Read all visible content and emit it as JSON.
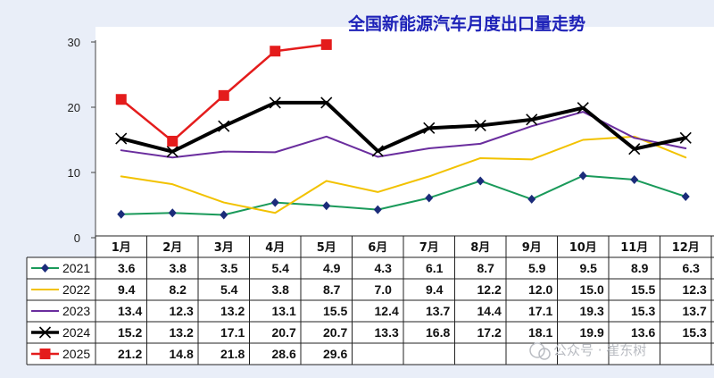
{
  "chart_data": {
    "type": "line",
    "title": "全国新能源汽车月度出口量走势",
    "categories": [
      "1月",
      "2月",
      "3月",
      "4月",
      "5月",
      "6月",
      "7月",
      "8月",
      "9月",
      "10月",
      "11月",
      "12月"
    ],
    "ylim": [
      0,
      30
    ],
    "yticks": [
      0,
      10,
      20,
      30
    ],
    "grid": false,
    "legend_position": "data-table-left",
    "series": [
      {
        "name": "2021",
        "color": "#1a9a5a",
        "marker": "diamond",
        "marker_color": "#1b2c7a",
        "width": 2,
        "values": [
          3.6,
          3.8,
          3.5,
          5.4,
          4.9,
          4.3,
          6.1,
          8.7,
          5.9,
          9.5,
          8.9,
          6.3
        ]
      },
      {
        "name": "2022",
        "color": "#f2c200",
        "marker": "none",
        "width": 2,
        "values": [
          9.4,
          8.2,
          5.4,
          3.8,
          8.7,
          7.0,
          9.4,
          12.2,
          12.0,
          15.0,
          15.5,
          12.3
        ]
      },
      {
        "name": "2023",
        "color": "#6a2d9e",
        "marker": "none",
        "width": 2,
        "values": [
          13.4,
          12.3,
          13.2,
          13.1,
          15.5,
          12.4,
          13.7,
          14.4,
          17.1,
          19.3,
          15.3,
          13.7
        ]
      },
      {
        "name": "2024",
        "color": "#000000",
        "marker": "x",
        "width": 4,
        "values": [
          15.2,
          13.2,
          17.1,
          20.7,
          20.7,
          13.3,
          16.8,
          17.2,
          18.1,
          19.9,
          13.6,
          15.3
        ]
      },
      {
        "name": "2025",
        "color": "#e41c1c",
        "marker": "square",
        "width": 2.5,
        "values": [
          21.2,
          14.8,
          21.8,
          28.6,
          29.6,
          null,
          null,
          null,
          null,
          null,
          null,
          null
        ]
      }
    ]
  },
  "table_rows": [
    {
      "label": "2021",
      "cells": [
        "3.6",
        "3.8",
        "3.5",
        "5.4",
        "4.9",
        "4.3",
        "6.1",
        "8.7",
        "5.9",
        "9.5",
        "8.9",
        "6.3"
      ]
    },
    {
      "label": "2022",
      "cells": [
        "9.4",
        "8.2",
        "5.4",
        "3.8",
        "8.7",
        "7.0",
        "9.4",
        "12.2",
        "12.0",
        "15.0",
        "15.5",
        "12.3"
      ]
    },
    {
      "label": "2023",
      "cells": [
        "13.4",
        "12.3",
        "13.2",
        "13.1",
        "15.5",
        "12.4",
        "13.7",
        "14.4",
        "17.1",
        "19.3",
        "15.3",
        "13.7"
      ]
    },
    {
      "label": "2024",
      "cells": [
        "15.2",
        "13.2",
        "17.1",
        "20.7",
        "20.7",
        "13.3",
        "16.8",
        "17.2",
        "18.1",
        "19.9",
        "13.6",
        "15.3"
      ]
    },
    {
      "label": "2025",
      "cells": [
        "21.2",
        "14.8",
        "21.8",
        "28.6",
        "29.6",
        "",
        "",
        "",
        "",
        "",
        "",
        ""
      ]
    }
  ],
  "watermark": "公众号 · 崔东树"
}
